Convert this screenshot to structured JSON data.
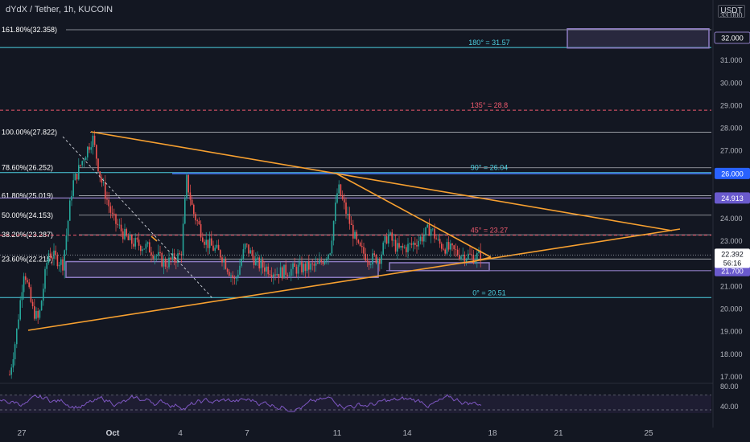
{
  "header": {
    "title": "dYdX / Tether, 1h, KUCOIN",
    "currency": "USDT"
  },
  "colors": {
    "background": "#131722",
    "candle_up": "#26a69a",
    "candle_down": "#ef5350",
    "trendline": "#f7a030",
    "fib_line": "#c9ccd3",
    "gann_cyan": "#4dd0e1",
    "gann_red": "#f05a6e",
    "zone": "#8e7cc3",
    "rsi": "#7e57c2",
    "axis_text": "#b2b5be"
  },
  "chart_data": {
    "type": "candlestick",
    "symbol": "dYdX / Tether",
    "interval": "1h",
    "exchange": "KUCOIN",
    "ylim": [
      16.6,
      33.6
    ],
    "y_scale": "linear",
    "grid": false,
    "y_ticks": [
      "17.000",
      "18.000",
      "19.000",
      "20.000",
      "21.000",
      "22.000",
      "23.000",
      "24.000",
      "25.000",
      "26.000",
      "27.000",
      "28.000",
      "29.000",
      "30.000",
      "31.000",
      "33.000"
    ],
    "x_ticks": [
      "27",
      "Oct",
      "4",
      "7",
      "11",
      "14",
      "18",
      "21",
      "25"
    ],
    "last_price": 22.392,
    "countdown": "56:16",
    "price_tags": [
      {
        "value": 32.0,
        "label": "32.000",
        "style": "boxed"
      },
      {
        "value": 26.0,
        "label": "26.000",
        "style": "blue"
      },
      {
        "value": 24.913,
        "label": "24.913",
        "style": "purple"
      },
      {
        "value": 21.7,
        "label": "21.700",
        "style": "purple"
      }
    ],
    "fib_levels": [
      {
        "label": "161.80%(32.358)",
        "value": 32.358
      },
      {
        "label": "100.00%(27.822)",
        "value": 27.822
      },
      {
        "label": "78.60%(26.252)",
        "value": 26.252
      },
      {
        "label": "61.80%(25.019)",
        "value": 25.019
      },
      {
        "label": "50.00%(24.153)",
        "value": 24.153
      },
      {
        "label": "38.20%(23.287)",
        "value": 23.287
      },
      {
        "label": "23.60%(22.215)",
        "value": 22.215
      }
    ],
    "gann_levels": [
      {
        "label": "180° = 31.57",
        "value": 31.57,
        "color": "cyan"
      },
      {
        "label": "135° = 28.8",
        "value": 28.8,
        "color": "red"
      },
      {
        "label": "90° = 26.04",
        "value": 26.04,
        "color": "cyan"
      },
      {
        "label": "45° = 23.27",
        "value": 23.27,
        "color": "red"
      },
      {
        "label": "0° = 20.51",
        "value": 20.51,
        "color": "cyan"
      }
    ],
    "rsi_panel": {
      "ticks": [
        "80.00",
        "40.00"
      ],
      "ylim": [
        30,
        90
      ]
    }
  }
}
